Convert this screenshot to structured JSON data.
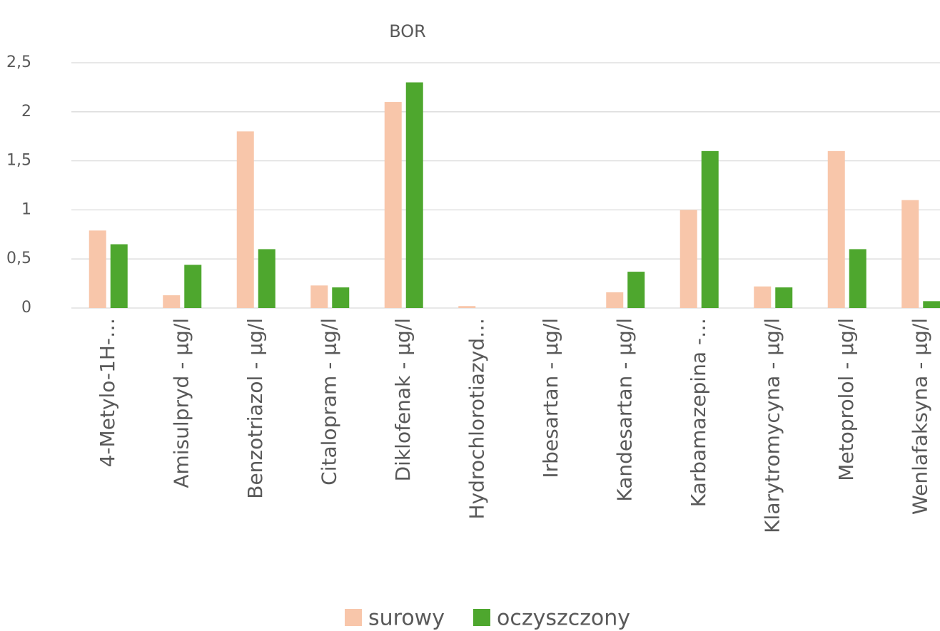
{
  "chart_data": {
    "type": "bar",
    "title": "BOR",
    "categories": [
      "4-Metylo-1H-…",
      "Amisulpryd - µg/l",
      "Benzotriazol - µg/l",
      "Citalopram - µg/l",
      "Diklofenak - µg/l",
      "Hydrochlorotiazyd…",
      "Irbesartan - µg/l",
      "Kandesartan - µg/l",
      "Karbamazepina -…",
      "Klarytromycyna - µg/l",
      "Metoprolol - µg/l",
      "Wenlafaksyna - µg/l"
    ],
    "series": [
      {
        "name": "surowy",
        "color": "#f8c6aa",
        "values": [
          0.79,
          0.13,
          1.8,
          0.23,
          2.1,
          0.02,
          0,
          0.16,
          1.0,
          0.22,
          1.6,
          1.1
        ]
      },
      {
        "name": "oczyszczony",
        "color": "#4ea72e",
        "values": [
          0.65,
          0.44,
          0.6,
          0.21,
          2.3,
          0,
          0,
          0.37,
          1.6,
          0.21,
          0.6,
          0.07
        ]
      }
    ],
    "ylim": [
      0,
      2.5
    ],
    "yticks": [
      0,
      {
        "value": 0.5,
        "label": "0,5"
      },
      1,
      {
        "value": 1.5,
        "label": "1,5"
      },
      2,
      {
        "value": 2.5,
        "label": "2,5"
      }
    ],
    "grid": true,
    "legend": "bottom"
  }
}
